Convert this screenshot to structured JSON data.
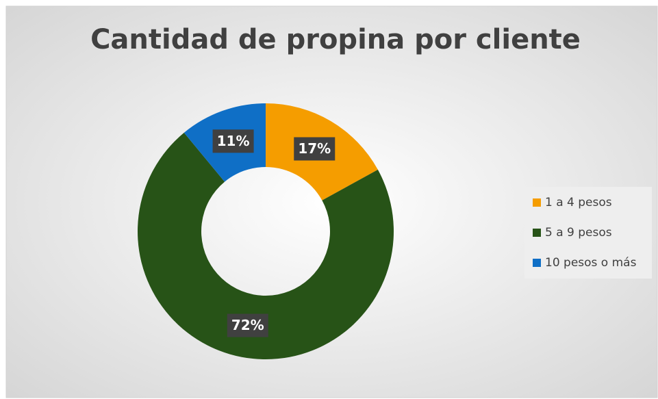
{
  "chart_data": {
    "type": "donut",
    "title": "Cantidad de propina por cliente",
    "categories": [
      "1 a 4 pesos",
      "5 a 9 pesos",
      "10 pesos o más"
    ],
    "values": [
      17,
      72,
      11
    ],
    "value_labels": [
      "17%",
      "72%",
      "11%"
    ],
    "colors": [
      "#f59d00",
      "#275317",
      "#0f6fc6"
    ],
    "legend": "right"
  }
}
